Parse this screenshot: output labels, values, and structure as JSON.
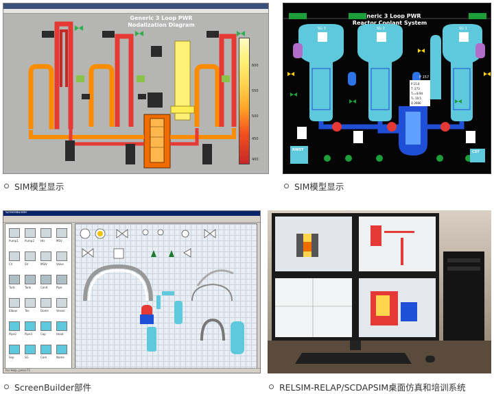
{
  "captions": {
    "top_left": "SIM模型显示",
    "top_right": "SIM模型显示",
    "bottom_left": "ScreenBuilder部件",
    "bottom_right": "RELSIM-RELAP/SCDAPSIM桌面仿真和培训系统"
  },
  "panel1": {
    "title_line1": "Generic 3 Loop PWR",
    "title_line2": "Nodalization Diagram",
    "colorbar_ticks": [
      "600",
      "550",
      "500",
      "450",
      "400"
    ]
  },
  "panel2": {
    "title_line1": "Generic 3 Loop PWR",
    "title_line2": "Reactor Coolant System",
    "sg_labels": [
      "SG 3",
      "SG 2",
      "SG 1"
    ],
    "tank_labels": [
      "RWST",
      "CST"
    ],
    "pressurizer_label": "P",
    "pressurizer_value": "157",
    "vessel_readout": [
      "P  15.6",
      "T  -273",
      "Tₒᵤₜ 8.94",
      "Tᵢₙ 10.5",
      "Q  2666"
    ]
  },
  "panel3": {
    "window_title": "ScreenBuilder",
    "status_text": "For Help, press F1",
    "library_labels": [
      "Pump1",
      "Pump2",
      "Htr",
      "MSV",
      "CV",
      "SV",
      "MSIV",
      "Valve",
      "Turb",
      "Tank",
      "Cond",
      "Pipe",
      "Elbow",
      "Tee",
      "Dome",
      "Vessel",
      "Pipe2",
      "Pipe3",
      "Cap",
      "Head",
      "Sep",
      "SG",
      "Core",
      "Name"
    ]
  },
  "colors": {
    "scada_bg": "#b5b5b3",
    "hot_red": "#e53935",
    "orange": "#fb8c00",
    "yellow": "#fff176",
    "coolant_blue": "#1e4fd6",
    "cyan_tank": "#5ec8dc",
    "valve_green": "#1e9e3a"
  }
}
